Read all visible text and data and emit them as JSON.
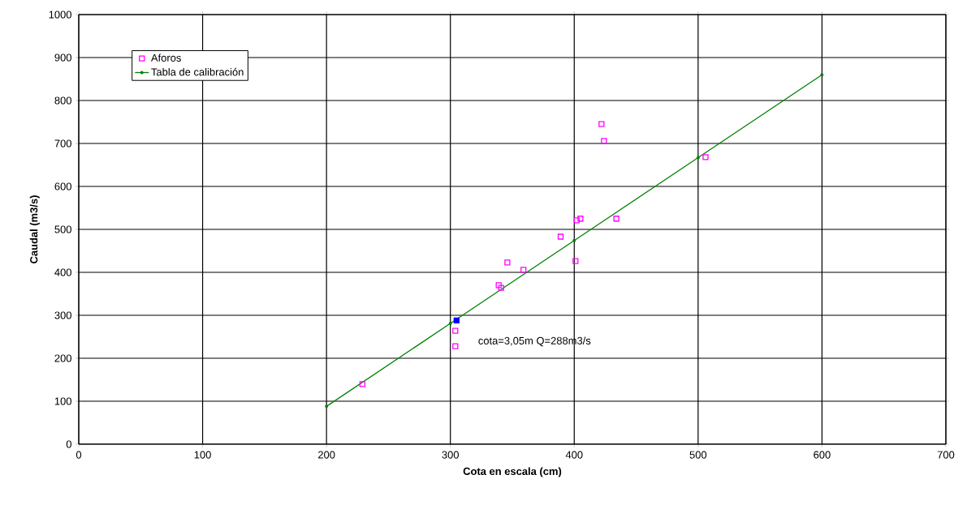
{
  "chart_data": {
    "type": "scatter",
    "xlabel": "Cota en escala (cm)",
    "ylabel": "Caudal (m3/s)",
    "xlim": [
      0,
      700
    ],
    "ylim": [
      0,
      1000
    ],
    "xticks": [
      0,
      100,
      200,
      300,
      400,
      500,
      600,
      700
    ],
    "yticks": [
      0,
      100,
      200,
      300,
      400,
      500,
      600,
      700,
      800,
      900,
      1000
    ],
    "grid": true,
    "legend": "top left",
    "annotations": [
      {
        "text": "cota=3,05m Q=288m3/s",
        "x": 305,
        "y": 288
      }
    ],
    "series": [
      {
        "name": "Aforos",
        "marker": "square",
        "color": "#ff00ff",
        "x": [
          229,
          304,
          304,
          339,
          341,
          346,
          359,
          389,
          401,
          402,
          405,
          422,
          424,
          434,
          506
        ],
        "values": [
          140,
          264,
          228,
          370,
          364,
          423,
          406,
          483,
          426,
          521,
          525,
          745,
          706,
          525,
          668
        ]
      },
      {
        "name": "Tabla de calibración",
        "type": "line",
        "marker": "circle",
        "color": "#008000",
        "x": [
          200,
          300,
          400,
          500,
          600
        ],
        "values": [
          88,
          281,
          474,
          667,
          860
        ]
      },
      {
        "marker": "square",
        "color": "#0000ff",
        "x": [
          305
        ],
        "values": [
          288
        ]
      }
    ]
  }
}
